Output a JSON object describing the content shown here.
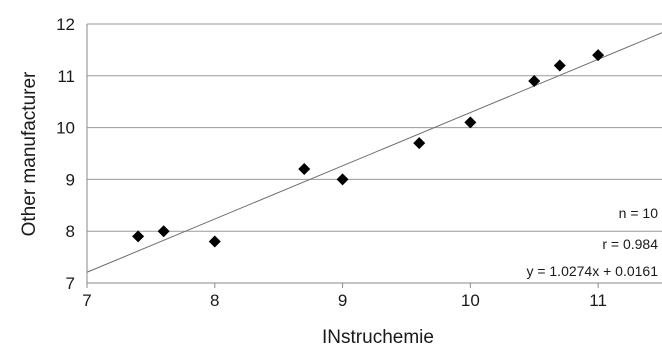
{
  "chart_data": {
    "type": "scatter",
    "xlabel": "INstruchemie",
    "ylabel": "Other manufacturer",
    "xlim": [
      7,
      11.5
    ],
    "ylim": [
      7,
      12
    ],
    "x_ticks": [
      "7",
      "8",
      "9",
      "10",
      "11"
    ],
    "y_ticks": [
      "7",
      "8",
      "9",
      "10",
      "11",
      "12"
    ],
    "grid": "horizontal",
    "points": [
      {
        "x": 7.4,
        "y": 7.9
      },
      {
        "x": 7.6,
        "y": 8.0
      },
      {
        "x": 8.0,
        "y": 7.8
      },
      {
        "x": 8.7,
        "y": 9.2
      },
      {
        "x": 9.0,
        "y": 9.0
      },
      {
        "x": 9.6,
        "y": 9.7
      },
      {
        "x": 10.0,
        "y": 10.1
      },
      {
        "x": 10.5,
        "y": 10.9
      },
      {
        "x": 10.7,
        "y": 11.2
      },
      {
        "x": 11.0,
        "y": 11.4
      }
    ],
    "fit": {
      "slope": 1.0274,
      "intercept": 0.0161
    },
    "annotations": [
      "n = 10",
      "r  = 0.984",
      "y = 1.0274x + 0.0161"
    ],
    "colors": {
      "grid": "#9a9a9a",
      "marker": "#000000",
      "fit_line": "#6e6e6e"
    }
  }
}
